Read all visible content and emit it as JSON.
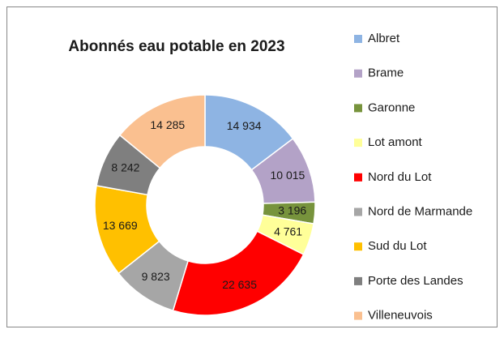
{
  "chart_data": {
    "type": "donut",
    "title": "Abonnés eau potable en 2023",
    "categories": [
      "Albret",
      "Brame",
      "Garonne",
      "Lot amont",
      "Nord du Lot",
      "Nord de Marmande",
      "Sud du Lot",
      "Porte des Landes",
      "Villeneuvois"
    ],
    "values": [
      14934,
      10015,
      3196,
      4761,
      22635,
      9823,
      13669,
      8242,
      14285
    ],
    "value_labels": [
      "14 934",
      "10 015",
      "3 196",
      "4 761",
      "22 635",
      "9 823",
      "13 669",
      "8 242",
      "14 285"
    ],
    "colors": [
      "#8eb4e3",
      "#b3a2c7",
      "#77933c",
      "#ffff99",
      "#ff0000",
      "#a6a6a6",
      "#ffc000",
      "#7f7f7f",
      "#fac090"
    ],
    "legend": "right"
  }
}
